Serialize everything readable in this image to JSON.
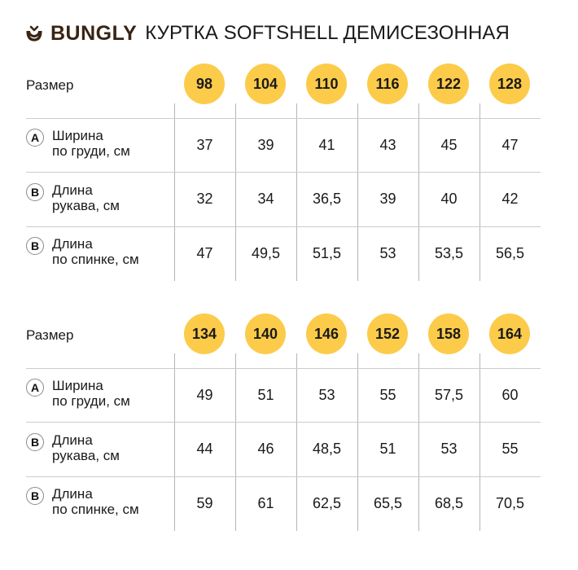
{
  "header": {
    "logo_icon": "smile-cup-icon",
    "brand": "BUNGLY",
    "title": "КУРТКА SOFTSHELL ДЕМИСЕЗОННАЯ",
    "brand_color": "#3a2413"
  },
  "colors": {
    "badge": "#fccb4a",
    "grid": "#b5b5b5"
  },
  "tables": [
    {
      "size_label": "Размер",
      "sizes": [
        "98",
        "104",
        "110",
        "116",
        "122",
        "128"
      ],
      "rows": [
        {
          "letter": "A",
          "label_line1": "Ширина",
          "label_line2": "по груди, см",
          "values": [
            "37",
            "39",
            "41",
            "43",
            "45",
            "47"
          ]
        },
        {
          "letter": "B",
          "label_line1": "Длина",
          "label_line2": "рукава, см",
          "values": [
            "32",
            "34",
            "36,5",
            "39",
            "40",
            "42"
          ]
        },
        {
          "letter": "B",
          "label_line1": "Длина",
          "label_line2": "по спинке, см",
          "values": [
            "47",
            "49,5",
            "51,5",
            "53",
            "53,5",
            "56,5"
          ]
        }
      ]
    },
    {
      "size_label": "Размер",
      "sizes": [
        "134",
        "140",
        "146",
        "152",
        "158",
        "164"
      ],
      "rows": [
        {
          "letter": "A",
          "label_line1": "Ширина",
          "label_line2": "по груди, см",
          "values": [
            "49",
            "51",
            "53",
            "55",
            "57,5",
            "60"
          ]
        },
        {
          "letter": "B",
          "label_line1": "Длина",
          "label_line2": "рукава, см",
          "values": [
            "44",
            "46",
            "48,5",
            "51",
            "53",
            "55"
          ]
        },
        {
          "letter": "B",
          "label_line1": "Длина",
          "label_line2": "по спинке, см",
          "values": [
            "59",
            "61",
            "62,5",
            "65,5",
            "68,5",
            "70,5"
          ]
        }
      ]
    }
  ]
}
